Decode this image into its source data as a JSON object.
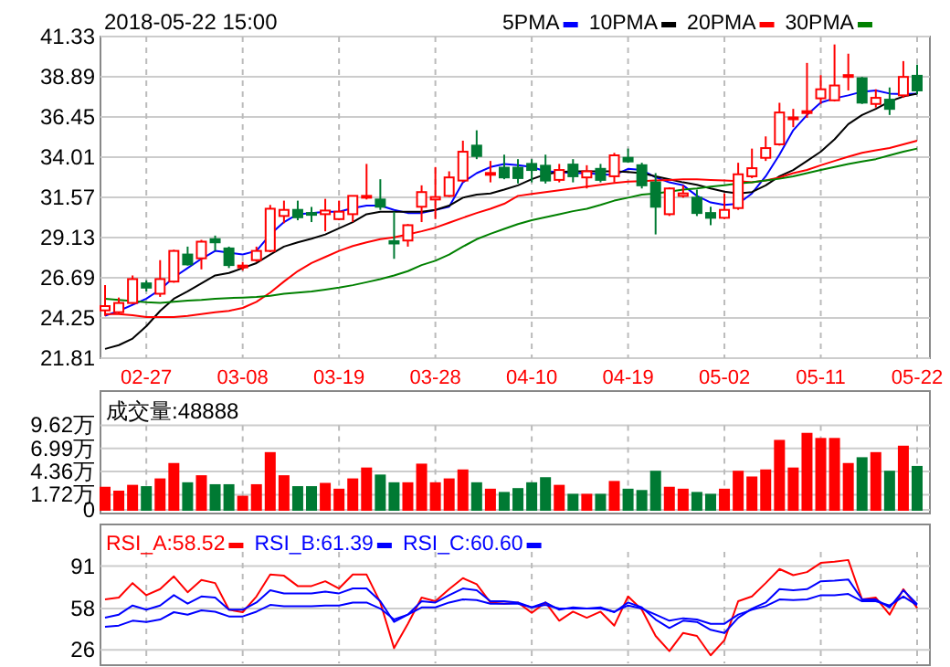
{
  "chart_data": [
    {
      "type": "candlestick",
      "title": "2018-05-22 15:00",
      "legend": "top right",
      "grid": true,
      "categories": [
        null,
        null,
        null,
        "02-27",
        null,
        null,
        null,
        null,
        null,
        null,
        "03-08",
        null,
        null,
        null,
        null,
        null,
        null,
        "03-19",
        null,
        null,
        null,
        null,
        null,
        null,
        "03-28",
        null,
        null,
        null,
        null,
        null,
        null,
        "04-10",
        null,
        null,
        null,
        null,
        null,
        null,
        "04-19",
        null,
        null,
        null,
        null,
        null,
        null,
        "05-02",
        null,
        null,
        null,
        null,
        null,
        null,
        "05-11",
        null,
        null,
        null,
        null,
        null,
        null,
        "05-22"
      ],
      "ylim": [
        21.81,
        41.33
      ],
      "yticks": [
        21.81,
        24.25,
        26.69,
        29.13,
        31.57,
        34.01,
        36.45,
        38.89,
        41.33
      ],
      "colors": [
        "#ff0000",
        "#ff0000",
        "#ff0000",
        "#007a33",
        "#ff0000",
        "#ff0000",
        "#007a33",
        "#ff0000",
        "#007a33",
        "#007a33",
        "#ff0000",
        "#ff0000",
        "#ff0000",
        "#ff0000",
        "#007a33",
        "#007a33",
        "#ff0000",
        "#ff0000",
        "#ff0000",
        "#ff0000",
        "#007a33",
        "#007a33",
        "#ff0000",
        "#ff0000",
        "#ff0000",
        "#ff0000",
        "#ff0000",
        "#007a33",
        "#ff0000",
        "#007a33",
        "#007a33",
        "#007a33",
        "#007a33",
        "#ff0000",
        "#007a33",
        "#ff0000",
        "#007a33",
        "#ff0000",
        "#007a33",
        "#007a33",
        "#007a33",
        "#ff0000",
        "#ff0000",
        "#007a33",
        "#007a33",
        "#ff0000",
        "#ff0000",
        "#ff0000",
        "#ff0000",
        "#ff0000",
        "#ff0000",
        "#ff0000",
        "#ff0000",
        "#ff0000",
        "#ff0000",
        "#007a33",
        "#ff0000",
        "#007a33",
        "#ff0000",
        "#007a33"
      ],
      "ohlc": [
        [
          24.71,
          26.24,
          24.38,
          24.97
        ],
        [
          24.6,
          25.49,
          24.49,
          25.16
        ],
        [
          25.16,
          26.83,
          25.1,
          26.61
        ],
        [
          26.35,
          26.53,
          25.86,
          26.09
        ],
        [
          25.72,
          27.76,
          25.53,
          26.61
        ],
        [
          26.46,
          28.39,
          26.39,
          28.32
        ],
        [
          28.1,
          28.58,
          27.43,
          27.5
        ],
        [
          27.87,
          28.99,
          27.2,
          28.88
        ],
        [
          29.03,
          29.25,
          28.32,
          28.84
        ],
        [
          28.47,
          28.58,
          27.28,
          27.46
        ],
        [
          27.35,
          27.65,
          27.13,
          27.43
        ],
        [
          27.76,
          28.58,
          27.65,
          28.32
        ],
        [
          28.32,
          31.11,
          28.24,
          30.88
        ],
        [
          30.44,
          31.37,
          30.0,
          30.81
        ],
        [
          30.81,
          31.37,
          30.18,
          30.36
        ],
        [
          30.62,
          30.99,
          30.07,
          30.55
        ],
        [
          30.55,
          31.48,
          29.51,
          30.77
        ],
        [
          30.25,
          31.37,
          30.18,
          30.7
        ],
        [
          30.55,
          31.66,
          30.07,
          31.66
        ],
        [
          31.55,
          33.6,
          31.44,
          31.66
        ],
        [
          31.44,
          32.67,
          30.81,
          31.0
        ],
        [
          28.91,
          30.7,
          27.84,
          28.77
        ],
        [
          28.95,
          29.95,
          28.58,
          29.88
        ],
        [
          31.0,
          32.3,
          30.07,
          31.89
        ],
        [
          31.44,
          33.41,
          30.25,
          31.59
        ],
        [
          31.66,
          33.15,
          31.59,
          32.78
        ],
        [
          32.59,
          35.01,
          32.48,
          34.34
        ],
        [
          34.71,
          35.64,
          33.89,
          34.08
        ],
        [
          33.0,
          33.78,
          32.48,
          33.05
        ],
        [
          33.37,
          34.16,
          32.67,
          32.78
        ],
        [
          33.37,
          33.89,
          32.41,
          32.74
        ],
        [
          33.6,
          33.89,
          32.48,
          33.23
        ],
        [
          33.49,
          34.16,
          32.41,
          32.59
        ],
        [
          32.63,
          33.6,
          32.48,
          33.23
        ],
        [
          33.56,
          33.89,
          32.48,
          32.85
        ],
        [
          32.78,
          33.52,
          32.11,
          33.15
        ],
        [
          33.3,
          33.6,
          32.48,
          32.63
        ],
        [
          32.85,
          34.27,
          32.48,
          34.12
        ],
        [
          33.97,
          34.53,
          33.67,
          33.75
        ],
        [
          33.52,
          33.67,
          32.11,
          32.3
        ],
        [
          32.48,
          33.04,
          29.32,
          31.0
        ],
        [
          30.55,
          32.18,
          30.44,
          32.11
        ],
        [
          31.66,
          32.3,
          31.55,
          31.81
        ],
        [
          31.55,
          32.04,
          30.44,
          30.62
        ],
        [
          30.62,
          31.0,
          29.88,
          30.33
        ],
        [
          30.33,
          31.81,
          30.25,
          30.81
        ],
        [
          30.92,
          33.67,
          30.81,
          32.97
        ],
        [
          32.85,
          34.53,
          32.74,
          33.34
        ],
        [
          33.97,
          35.27,
          33.78,
          34.56
        ],
        [
          34.79,
          37.31,
          34.71,
          36.72
        ],
        [
          36.35,
          36.94,
          35.83,
          36.42
        ],
        [
          36.72,
          39.73,
          36.39,
          36.8
        ],
        [
          37.58,
          38.99,
          37.24,
          38.13
        ],
        [
          37.46,
          40.85,
          37.39,
          38.36
        ],
        [
          38.91,
          40.29,
          38.06,
          38.99
        ],
        [
          38.8,
          38.88,
          37.24,
          37.32
        ],
        [
          37.24,
          38.13,
          37.02,
          37.61
        ],
        [
          37.5,
          38.24,
          36.57,
          36.94
        ],
        [
          37.76,
          39.84,
          37.61,
          38.88
        ],
        [
          38.95,
          39.62,
          37.84,
          38.06
        ]
      ],
      "series": [
        {
          "name": "5PMA",
          "type": "line",
          "color": "#0000ff",
          "values": [
            24.38,
            24.68,
            25.05,
            25.42,
            25.97,
            26.72,
            27.28,
            27.84,
            28.32,
            28.21,
            28.1,
            28.32,
            29.32,
            30.07,
            30.55,
            30.62,
            30.7,
            30.7,
            30.92,
            31.07,
            31.07,
            30.81,
            30.62,
            30.62,
            30.81,
            31.0,
            32.48,
            33.04,
            33.41,
            33.6,
            33.52,
            33.41,
            33.15,
            33.11,
            33.04,
            33.04,
            32.97,
            32.93,
            33.3,
            33.23,
            32.78,
            32.48,
            32.3,
            31.66,
            31.26,
            31.11,
            31.18,
            31.81,
            32.85,
            34.16,
            35.64,
            36.57,
            37.32,
            37.58,
            37.76,
            37.98,
            38.06,
            37.87,
            37.84,
            37.87
          ]
        },
        {
          "name": "10PMA",
          "type": "line",
          "color": "#000000",
          "values": [
            22.37,
            22.6,
            23.0,
            23.75,
            24.68,
            25.42,
            25.86,
            26.35,
            26.83,
            26.98,
            27.28,
            27.58,
            28.1,
            28.58,
            28.84,
            29.06,
            29.32,
            29.69,
            30.07,
            30.55,
            30.7,
            30.7,
            30.7,
            30.7,
            30.81,
            31.07,
            31.55,
            31.74,
            31.81,
            32.04,
            32.3,
            32.67,
            32.97,
            33.11,
            33.15,
            33.15,
            33.15,
            33.15,
            33.11,
            33.04,
            32.85,
            32.67,
            32.48,
            32.33,
            32.11,
            31.92,
            31.81,
            31.89,
            32.3,
            32.85,
            33.23,
            33.78,
            34.34,
            35.09,
            36.01,
            36.57,
            36.94,
            37.39,
            37.69,
            37.87
          ]
        },
        {
          "name": "20PMA",
          "type": "line",
          "color": "#ff0000",
          "values": [
            24.49,
            24.49,
            24.42,
            24.3,
            24.3,
            24.3,
            24.38,
            24.49,
            24.6,
            24.68,
            24.86,
            25.23,
            25.79,
            26.46,
            27.09,
            27.58,
            27.95,
            28.32,
            28.62,
            28.84,
            29.03,
            29.14,
            29.32,
            29.51,
            29.73,
            30.03,
            30.33,
            30.62,
            30.88,
            31.18,
            31.66,
            31.78,
            31.89,
            32.0,
            32.11,
            32.22,
            32.33,
            32.45,
            32.52,
            32.56,
            32.59,
            32.63,
            32.67,
            32.67,
            32.63,
            32.59,
            32.56,
            32.48,
            32.59,
            32.78,
            33.04,
            33.23,
            33.52,
            33.78,
            34.04,
            34.27,
            34.42,
            34.56,
            34.79,
            35.01
          ]
        },
        {
          "name": "30PMA",
          "type": "line",
          "color": "#008000",
          "values": [
            25.42,
            25.34,
            25.27,
            25.2,
            25.16,
            25.23,
            25.31,
            25.34,
            25.42,
            25.46,
            25.49,
            25.53,
            25.6,
            25.72,
            25.79,
            25.86,
            25.97,
            26.09,
            26.24,
            26.42,
            26.61,
            26.83,
            27.09,
            27.46,
            27.72,
            28.1,
            28.58,
            29.03,
            29.36,
            29.66,
            29.95,
            30.18,
            30.36,
            30.55,
            30.73,
            30.88,
            31.11,
            31.37,
            31.55,
            31.74,
            31.81,
            31.92,
            32.04,
            32.11,
            32.22,
            32.3,
            32.41,
            32.48,
            32.59,
            32.7,
            32.85,
            33.04,
            33.23,
            33.41,
            33.6,
            33.75,
            33.89,
            34.12,
            34.34,
            34.53
          ]
        }
      ]
    },
    {
      "type": "bar",
      "title": "成交量:48888",
      "grid": true,
      "tick_labels": "y",
      "categories": [
        null,
        null,
        null,
        null,
        null,
        null,
        null,
        null,
        null,
        null,
        null,
        null,
        null,
        null,
        null,
        null,
        null,
        null,
        null,
        null,
        null,
        null,
        null,
        null,
        null,
        null,
        null,
        null,
        null,
        null,
        null,
        null,
        null,
        null,
        null,
        null,
        null,
        null,
        null,
        null,
        null,
        null,
        null,
        null,
        null,
        null,
        null,
        null,
        null,
        null,
        null,
        null,
        null,
        null,
        null,
        null,
        null,
        null,
        null,
        null
      ],
      "ylim": [
        0,
        9.62
      ],
      "yticks": [
        0,
        {
          "value": 1.72,
          "label": "1.72万"
        },
        {
          "value": 4.36,
          "label": "4.36万"
        },
        {
          "value": 6.99,
          "label": "6.99万"
        },
        {
          "value": 9.62,
          "label": "9.62万"
        }
      ],
      "values": [
        2.52,
        2.08,
        2.74,
        2.59,
        3.47,
        5.22,
        3.03,
        3.83,
        2.81,
        2.81,
        1.5,
        2.81,
        6.46,
        3.83,
        2.59,
        2.59,
        2.96,
        2.3,
        3.47,
        4.71,
        3.91,
        3.03,
        3.03,
        5.15,
        3.03,
        3.47,
        4.49,
        3.03,
        2.3,
        1.93,
        2.37,
        3.03,
        3.61,
        2.74,
        1.72,
        1.72,
        1.72,
        3.18,
        2.3,
        2.15,
        4.34,
        2.52,
        2.3,
        1.93,
        1.72,
        2.3,
        4.34,
        3.69,
        4.49,
        7.85,
        4.71,
        8.65,
        8.07,
        8.07,
        5.22,
        5.88,
        6.46,
        4.34,
        7.19,
        4.89
      ],
      "colors": [
        "#ff0000",
        "#ff0000",
        "#ff0000",
        "#007a33",
        "#ff0000",
        "#ff0000",
        "#007a33",
        "#ff0000",
        "#007a33",
        "#007a33",
        "#ff0000",
        "#ff0000",
        "#ff0000",
        "#ff0000",
        "#007a33",
        "#007a33",
        "#ff0000",
        "#ff0000",
        "#ff0000",
        "#ff0000",
        "#007a33",
        "#007a33",
        "#ff0000",
        "#ff0000",
        "#ff0000",
        "#ff0000",
        "#ff0000",
        "#007a33",
        "#ff0000",
        "#007a33",
        "#007a33",
        "#007a33",
        "#007a33",
        "#ff0000",
        "#007a33",
        "#ff0000",
        "#007a33",
        "#ff0000",
        "#007a33",
        "#007a33",
        "#007a33",
        "#ff0000",
        "#ff0000",
        "#007a33",
        "#007a33",
        "#ff0000",
        "#ff0000",
        "#ff0000",
        "#ff0000",
        "#ff0000",
        "#ff0000",
        "#ff0000",
        "#ff0000",
        "#ff0000",
        "#ff0000",
        "#007a33",
        "#ff0000",
        "#007a33",
        "#ff0000",
        "#007a33"
      ]
    },
    {
      "type": "line",
      "legend": "top left",
      "grid": true,
      "tick_labels": "y",
      "categories": [
        null,
        null,
        null,
        null,
        null,
        null,
        null,
        null,
        null,
        null,
        null,
        null,
        null,
        null,
        null,
        null,
        null,
        null,
        null,
        null,
        null,
        null,
        null,
        null,
        null,
        null,
        null,
        null,
        null,
        null,
        null,
        null,
        null,
        null,
        null,
        null,
        null,
        null,
        null,
        null,
        null,
        null,
        null,
        null,
        null,
        null,
        null,
        null,
        null,
        null,
        null,
        null,
        null,
        null,
        null,
        null,
        null,
        null,
        null,
        null
      ],
      "ylim": [
        15.5,
        102
      ],
      "yticks": [
        26,
        58,
        91
      ],
      "series": [
        {
          "name": "RSI_A:58.52",
          "color": "#ff0000",
          "values": [
            65.1,
            66.5,
            77.8,
            68.4,
            73.1,
            83.0,
            70.7,
            80.2,
            77.8,
            57.1,
            55.2,
            67.4,
            84.4,
            83.5,
            75.5,
            75.5,
            79.2,
            73.6,
            84.4,
            84.4,
            62.7,
            27.3,
            46.2,
            66.5,
            63.7,
            73.1,
            81.6,
            76.9,
            62.7,
            61.8,
            62.7,
            54.7,
            62.7,
            48.6,
            55.6,
            50.9,
            55.6,
            44.8,
            67.4,
            57.1,
            36.8,
            25.0,
            39.1,
            36.8,
            21.7,
            33.5,
            63.7,
            67.4,
            77.8,
            88.7,
            83.9,
            86.3,
            93.4,
            94.3,
            95.7,
            65.1,
            66.5,
            53.3,
            73.1,
            58.52
          ]
        },
        {
          "name": "RSI_B:61.39",
          "color": "#0000ff",
          "values": [
            50.9,
            53.3,
            60.4,
            57.1,
            60.4,
            68.4,
            61.8,
            67.4,
            66.5,
            57.1,
            57.1,
            62.7,
            72.2,
            69.8,
            69.8,
            69.8,
            71.2,
            69.8,
            73.6,
            73.6,
            63.7,
            47.6,
            53.3,
            63.7,
            62.7,
            68.4,
            73.6,
            72.2,
            63.7,
            63.7,
            62.7,
            58.9,
            62.7,
            57.1,
            58.9,
            58.0,
            58.9,
            55.2,
            62.7,
            58.9,
            49.5,
            42.9,
            48.6,
            47.6,
            41.5,
            39.1,
            50.9,
            58.0,
            62.7,
            73.1,
            72.2,
            73.1,
            79.2,
            79.7,
            80.6,
            65.1,
            65.1,
            58.9,
            72.2,
            61.39
          ]
        },
        {
          "name": "RSI_C:60.60",
          "color": "#0000ff",
          "values": [
            43.8,
            44.8,
            48.6,
            47.6,
            49.5,
            55.2,
            53.3,
            56.6,
            55.6,
            51.9,
            51.9,
            55.6,
            60.8,
            59.9,
            59.9,
            59.9,
            60.4,
            60.4,
            62.7,
            62.7,
            58.0,
            49.5,
            53.3,
            58.9,
            58.9,
            62.7,
            65.1,
            64.6,
            61.8,
            61.8,
            61.8,
            58.9,
            60.8,
            58.0,
            58.0,
            58.0,
            58.0,
            55.6,
            60.4,
            58.0,
            53.3,
            48.6,
            50.5,
            49.5,
            46.2,
            46.2,
            53.3,
            57.1,
            59.9,
            65.1,
            64.6,
            65.1,
            68.4,
            68.4,
            69.3,
            63.7,
            63.7,
            60.4,
            67.4,
            60.6
          ]
        }
      ]
    }
  ]
}
